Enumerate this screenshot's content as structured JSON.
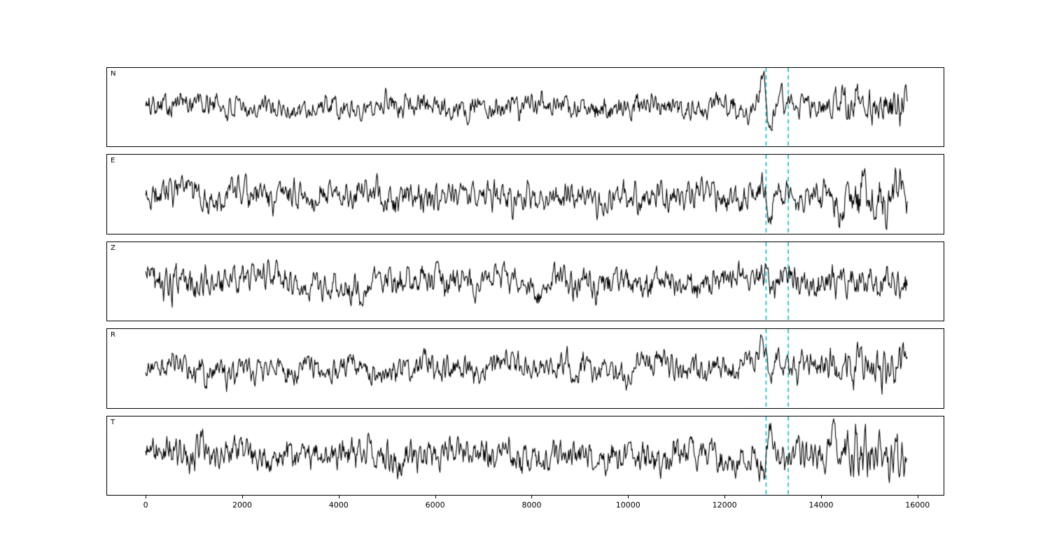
{
  "figure": {
    "background": "#ffffff"
  },
  "chart_data": {
    "type": "line",
    "kind": "multipanel-seismogram",
    "title": "",
    "xlabel": "",
    "ylabel": "",
    "grid": false,
    "legend": "none",
    "channels": [
      {
        "label": "N",
        "seed": 101,
        "base_amp": 11,
        "spike_amp": 48,
        "end_boost": 1.6,
        "start_boost": 1.0
      },
      {
        "label": "E",
        "seed": 202,
        "base_amp": 13,
        "spike_amp": 26,
        "end_boost": 1.6,
        "start_boost": 1.1
      },
      {
        "label": "Z",
        "seed": 303,
        "base_amp": 13,
        "spike_amp": 0,
        "end_boost": 1.15,
        "start_boost": 1.6
      },
      {
        "label": "R",
        "seed": 404,
        "base_amp": 12,
        "spike_amp": 34,
        "end_boost": 1.5,
        "start_boost": 1.0
      },
      {
        "label": "T",
        "seed": 505,
        "base_amp": 14,
        "spike_amp": -34,
        "end_boost": 1.55,
        "start_boost": 1.1
      }
    ],
    "x_axis": {
      "axis_min": -800,
      "axis_max": 16540,
      "data_min": 0,
      "data_max": 15800,
      "ticks": [
        0,
        2000,
        4000,
        6000,
        8000,
        10000,
        12000,
        14000,
        16000
      ]
    },
    "picks": [
      12860,
      13320
    ],
    "colors": {
      "trace": "#000000",
      "pick": "#00bfbf",
      "frame": "#000000",
      "background": "#ffffff"
    }
  }
}
